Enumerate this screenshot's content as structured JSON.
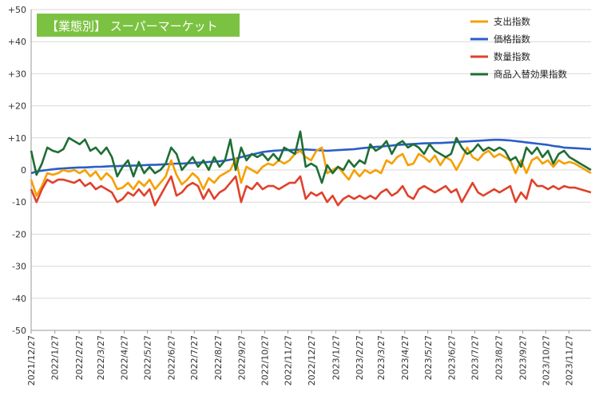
{
  "chart_data": {
    "type": "line",
    "title": "【業態別】 スーパーマーケット",
    "ylim": [
      -50,
      50
    ],
    "y_ticks": [
      "+50",
      "+40",
      "+30",
      "+20",
      "+10",
      "0",
      "-10",
      "-20",
      "-30",
      "-40",
      "-50"
    ],
    "y_tick_values": [
      50,
      40,
      30,
      20,
      10,
      0,
      -10,
      -20,
      -30,
      -40,
      -50
    ],
    "x_ticks": [
      "2021/12/27",
      "2022/1/27",
      "2022/2/27",
      "2022/3/27",
      "2022/4/27",
      "2022/5/27",
      "2022/6/27",
      "2022/7/27",
      "2022/8/27",
      "2022/9/27",
      "2022/10/27",
      "2022/11/27",
      "2022/12/27",
      "2023/1/27",
      "2023/2/27",
      "2023/3/27",
      "2023/4/27",
      "2023/5/27",
      "2023/6/27",
      "2023/7/27",
      "2023/8/27",
      "2023/9/27",
      "2023/10/27",
      "2023/11/27"
    ],
    "x_tick_positions": [
      0,
      4.4,
      8.9,
      12.9,
      17.3,
      21.6,
      26.0,
      30.3,
      34.7,
      39.1,
      43.4,
      47.7,
      52.1,
      56.6,
      61.0,
      65.0,
      69.4,
      73.7,
      78.1,
      82.4,
      86.9,
      91.3,
      95.6,
      99.9
    ],
    "x_count": 105,
    "series": [
      {
        "name": "支出指数",
        "color": "#f5a000",
        "values": [
          -3,
          -8,
          -5,
          -1,
          -1.5,
          -1,
          0,
          -0.5,
          0,
          -1,
          0,
          -2,
          -0.5,
          -3,
          -1,
          -2.5,
          -6,
          -5.5,
          -4,
          -6,
          -3.5,
          -5,
          -3,
          -6,
          -4,
          -2,
          3,
          -1.5,
          -4.5,
          -3,
          -1,
          -2.5,
          -6,
          -2.5,
          -4,
          -2,
          -1,
          0,
          3.5,
          -4,
          1,
          0,
          -1,
          1,
          2,
          1.5,
          3,
          2,
          3,
          5,
          6,
          4,
          3,
          6,
          7,
          -1,
          0,
          1,
          -1,
          -3,
          0,
          -2,
          0,
          -1,
          0,
          -1,
          3,
          2,
          4,
          5,
          1.5,
          2,
          5,
          4,
          2.5,
          4.5,
          1.5,
          4,
          3,
          0,
          3,
          7,
          4,
          3,
          5,
          6,
          4,
          5,
          4,
          3,
          -1,
          3,
          -1,
          3,
          4,
          2,
          3,
          1,
          3,
          2,
          2.5,
          2,
          1,
          0,
          -1
        ]
      },
      {
        "name": "価格指数",
        "color": "#2a5ec6",
        "values": [
          -1,
          -0.5,
          -0.2,
          0,
          0.2,
          0.4,
          0.5,
          0.6,
          0.7,
          0.8,
          0.8,
          0.9,
          1.0,
          1.0,
          1.1,
          1.2,
          1.2,
          1.3,
          1.3,
          1.4,
          1.4,
          1.5,
          1.6,
          1.6,
          1.7,
          1.8,
          1.9,
          2.0,
          2.0,
          2.1,
          2.2,
          2.3,
          2.4,
          2.5,
          2.6,
          2.7,
          2.9,
          3.2,
          3.5,
          4.0,
          4.4,
          4.8,
          5.2,
          5.6,
          5.8,
          6.0,
          6.1,
          6.2,
          6.2,
          6.3,
          6.3,
          6.4,
          6.3,
          6.2,
          6.1,
          6.0,
          6.1,
          6.2,
          6.3,
          6.4,
          6.5,
          6.7,
          6.9,
          7.0,
          7.2,
          7.3,
          7.5,
          7.6,
          7.8,
          7.9,
          8.0,
          8.1,
          8.2,
          8.3,
          8.3,
          8.4,
          8.4,
          8.5,
          8.6,
          8.7,
          8.8,
          8.9,
          9.0,
          9.1,
          9.2,
          9.3,
          9.4,
          9.4,
          9.3,
          9.2,
          9.0,
          8.8,
          8.6,
          8.4,
          8.2,
          8.0,
          7.8,
          7.5,
          7.3,
          7.0,
          6.9,
          6.8,
          6.7,
          6.6,
          6.5
        ]
      },
      {
        "name": "数量指数",
        "color": "#e0412c",
        "values": [
          -6,
          -10,
          -6,
          -3,
          -4,
          -3,
          -3,
          -3.5,
          -4,
          -3,
          -5,
          -4,
          -6,
          -5,
          -6,
          -7,
          -10,
          -9,
          -7,
          -8,
          -6,
          -8,
          -6,
          -11,
          -8,
          -5,
          -2,
          -8,
          -7,
          -5,
          -4,
          -5,
          -9,
          -6,
          -9,
          -7,
          -6,
          -4,
          -2,
          -10,
          -5,
          -6,
          -4,
          -6,
          -5,
          -5,
          -6,
          -5,
          -4,
          -4,
          -2,
          -9,
          -7,
          -8,
          -7,
          -10,
          -8,
          -11,
          -9,
          -8,
          -9,
          -8,
          -9,
          -8,
          -9,
          -7,
          -6,
          -8,
          -7,
          -5,
          -8,
          -9,
          -6,
          -5,
          -6,
          -7,
          -6,
          -5,
          -7,
          -6,
          -10,
          -7,
          -4,
          -7,
          -8,
          -7,
          -6,
          -7,
          -6,
          -5,
          -10,
          -7,
          -9,
          -3,
          -5,
          -5,
          -6,
          -5,
          -6,
          -5,
          -5.5,
          -5.5,
          -6,
          -6.5,
          -7
        ]
      },
      {
        "name": "商品入替効果指数",
        "color": "#1e6e35",
        "values": [
          6,
          -1.5,
          2,
          7,
          6,
          5.5,
          6.5,
          10,
          9,
          8,
          9.5,
          6,
          7,
          5,
          7,
          4,
          -2,
          1,
          3,
          -2,
          2.5,
          -1,
          1,
          -1,
          0,
          2,
          7,
          5,
          0,
          2,
          4,
          1,
          3,
          0,
          4,
          1,
          3,
          9.5,
          0,
          7,
          3,
          5,
          4,
          5,
          3,
          5,
          3,
          7,
          6,
          5,
          12,
          1,
          2,
          1,
          -4,
          1.5,
          -1,
          1,
          0,
          3,
          1,
          3,
          2,
          8,
          6,
          7,
          9,
          5,
          8,
          9,
          7,
          8,
          7,
          5,
          8,
          6,
          5,
          4,
          5,
          10,
          7,
          5,
          6,
          8,
          6,
          7,
          6,
          7,
          6,
          3,
          4,
          1,
          7,
          5,
          7,
          4,
          6,
          2,
          5,
          6,
          4,
          3,
          2,
          1,
          0
        ]
      }
    ]
  }
}
